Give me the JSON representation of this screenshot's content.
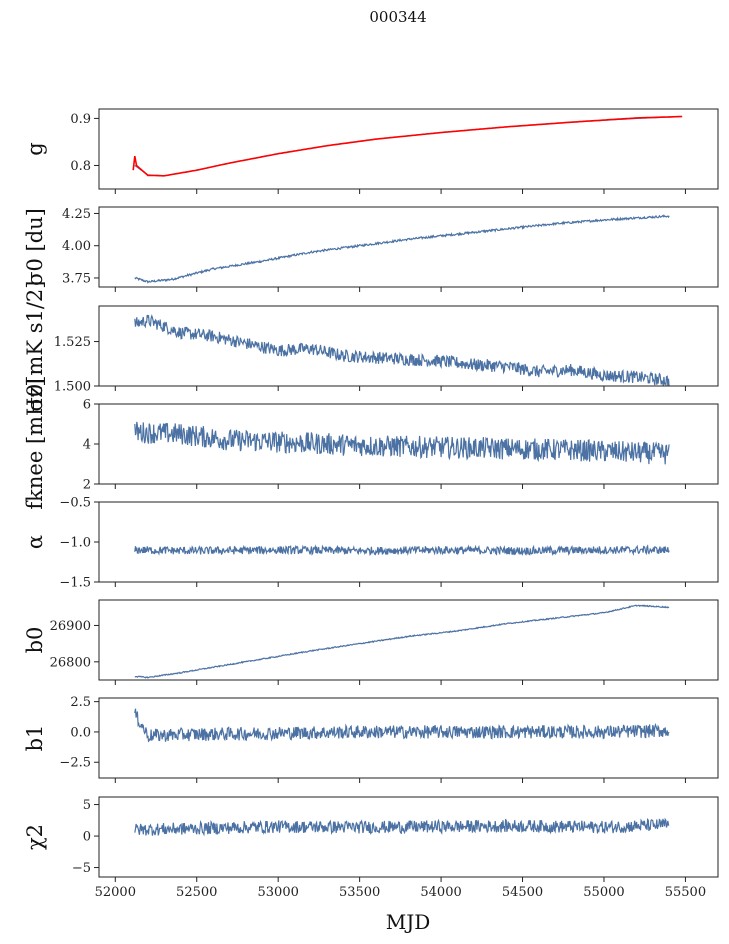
{
  "chart_data": {
    "type": "line",
    "title": "000344",
    "xlabel": "MJD",
    "xlim": [
      51900,
      55700
    ],
    "xticks": [
      "52000",
      "52500",
      "53000",
      "53500",
      "54000",
      "54500",
      "55000",
      "55500"
    ],
    "series_color": "#4c72a4",
    "overlay_color": "#ff0000",
    "panels": [
      {
        "id": "g",
        "ylabel": "g",
        "ylim": [
          0.75,
          0.92
        ],
        "yticks": [
          "0.8",
          "0.9"
        ],
        "x": [
          52120,
          52200,
          52300,
          52500,
          52700,
          53000,
          53300,
          53600,
          54000,
          54400,
          54800,
          55200,
          55410
        ],
        "y": [
          0.8,
          0.78,
          0.778,
          0.79,
          0.805,
          0.825,
          0.842,
          0.856,
          0.87,
          0.882,
          0.892,
          0.9,
          0.903
        ],
        "overlay": {
          "x": [
            52110,
            52120,
            52125,
            52130,
            52200,
            52300,
            52500,
            52700,
            53000,
            53300,
            53600,
            54000,
            54400,
            54800,
            55200,
            55480
          ],
          "y": [
            0.79,
            0.82,
            0.785,
            0.8,
            0.779,
            0.778,
            0.79,
            0.805,
            0.825,
            0.842,
            0.856,
            0.87,
            0.882,
            0.892,
            0.901,
            0.904
          ]
        }
      },
      {
        "id": "sigma0-du",
        "ylabel": "σ0 [du]",
        "ylim": [
          3.68,
          4.3
        ],
        "yticks": [
          "3.75",
          "4.00",
          "4.25"
        ],
        "x": [
          52120,
          52200,
          52350,
          52600,
          52900,
          53200,
          53500,
          53800,
          54100,
          54400,
          54700,
          55000,
          55400
        ],
        "y": [
          3.75,
          3.72,
          3.74,
          3.82,
          3.88,
          3.95,
          4.0,
          4.05,
          4.09,
          4.13,
          4.17,
          4.2,
          4.23
        ]
      },
      {
        "id": "sigma0-mk",
        "ylabel": "σ0[mK s1/2]",
        "ylim": [
          1.5,
          1.545
        ],
        "yticks": [
          "1.500",
          "1.525"
        ],
        "x": [
          52120,
          52200,
          52400,
          52600,
          52800,
          53000,
          53200,
          53400,
          53600,
          53800,
          54000,
          54200,
          54400,
          54600,
          54800,
          55000,
          55200,
          55400
        ],
        "y": [
          1.535,
          1.537,
          1.53,
          1.528,
          1.524,
          1.52,
          1.521,
          1.517,
          1.516,
          1.515,
          1.514,
          1.512,
          1.511,
          1.508,
          1.509,
          1.506,
          1.505,
          1.503
        ]
      },
      {
        "id": "fknee",
        "ylabel": "fknee [mHz]",
        "ylim": [
          2,
          6
        ],
        "yticks": [
          "2",
          "4",
          "6"
        ],
        "x": [
          52120,
          52400,
          52700,
          53000,
          53300,
          53600,
          53900,
          54200,
          54500,
          54800,
          55100,
          55400
        ],
        "y": [
          4.6,
          4.5,
          4.2,
          4.1,
          4.0,
          3.9,
          3.85,
          3.8,
          3.75,
          3.7,
          3.6,
          3.5
        ]
      },
      {
        "id": "alpha",
        "ylabel": "α",
        "ylim": [
          -1.5,
          -0.5
        ],
        "yticks": [
          "-1.5",
          "-1.0",
          "-0.5"
        ],
        "x": [
          52120,
          52500,
          53000,
          53500,
          54000,
          54500,
          55000,
          55400
        ],
        "y": [
          -1.1,
          -1.11,
          -1.1,
          -1.11,
          -1.1,
          -1.11,
          -1.1,
          -1.1
        ]
      },
      {
        "id": "b0",
        "ylabel": "b0",
        "ylim": [
          26750,
          26970
        ],
        "yticks": [
          "26800",
          "26900"
        ],
        "x": [
          52120,
          52200,
          52400,
          52600,
          52800,
          53000,
          53200,
          53500,
          53800,
          54100,
          54400,
          54700,
          55000,
          55200,
          55400
        ],
        "y": [
          26760,
          26757,
          26770,
          26785,
          26800,
          26815,
          26830,
          26850,
          26870,
          26885,
          26905,
          26920,
          26935,
          26955,
          26950
        ]
      },
      {
        "id": "b1",
        "ylabel": "b1",
        "ylim": [
          -3.8,
          2.8
        ],
        "yticks": [
          "-2.5",
          "0.0",
          "2.5"
        ],
        "x": [
          52120,
          52200,
          52500,
          53000,
          53500,
          54000,
          54500,
          55000,
          55400
        ],
        "y": [
          1.5,
          -0.3,
          -0.2,
          -0.1,
          0.0,
          0.0,
          0.0,
          0.0,
          0.1
        ]
      },
      {
        "id": "chi2",
        "ylabel": "χ2",
        "ylim": [
          -6.5,
          6.2
        ],
        "yticks": [
          "-5",
          "0",
          "5"
        ],
        "x": [
          52120,
          52500,
          53000,
          53500,
          54000,
          54500,
          55000,
          55400
        ],
        "y": [
          1.0,
          1.2,
          1.5,
          1.4,
          1.5,
          1.6,
          1.4,
          1.8
        ]
      }
    ]
  }
}
